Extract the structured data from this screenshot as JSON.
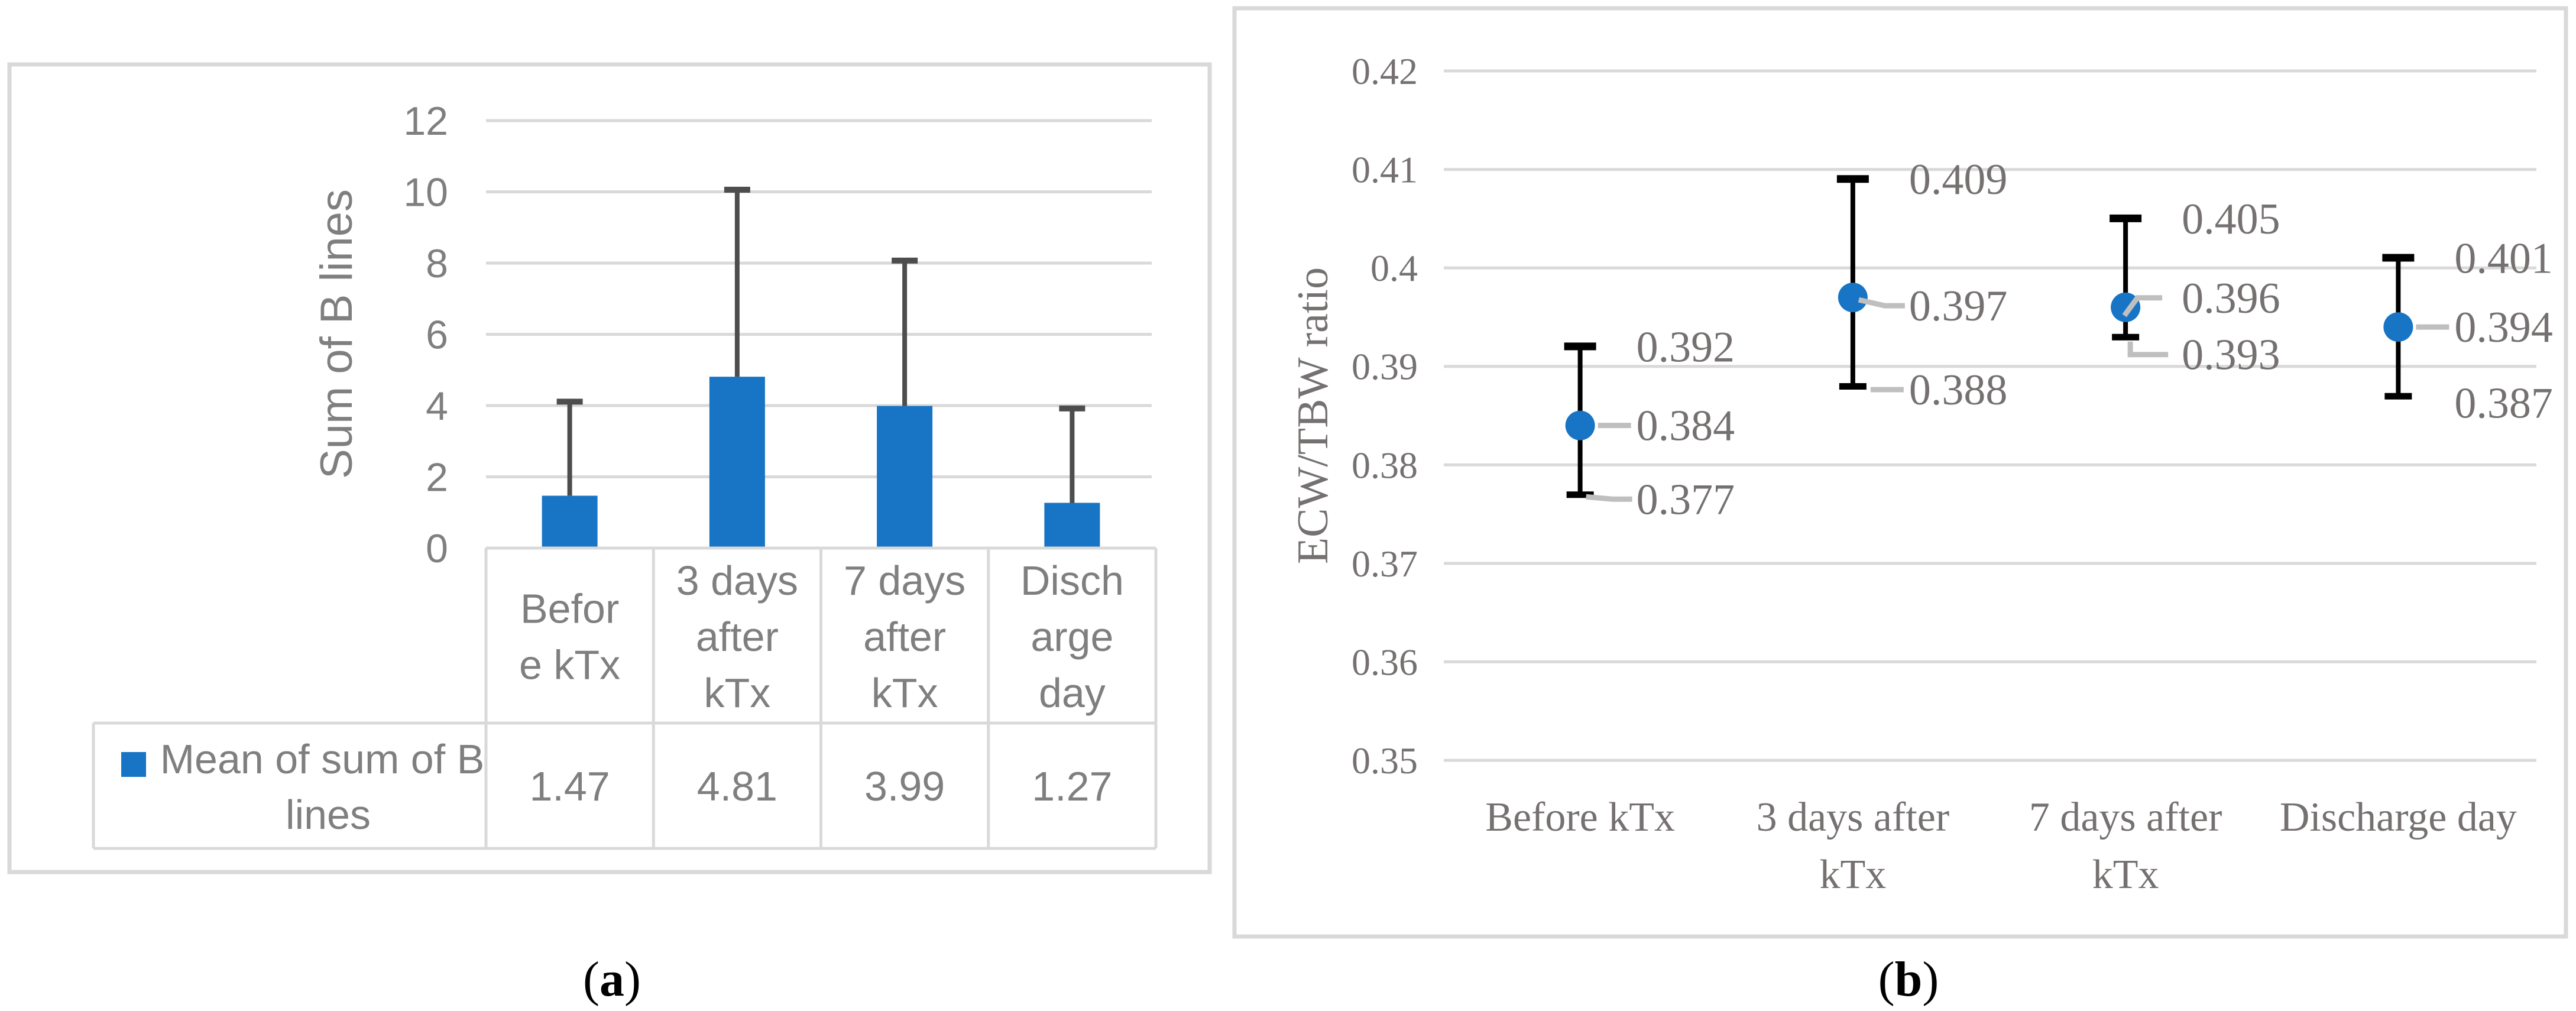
{
  "figure": {
    "caption_a": {
      "open": "(",
      "letter": "a",
      "close": ")"
    },
    "caption_b": {
      "open": "(",
      "letter": "b",
      "close": ")"
    }
  },
  "colors": {
    "bar_blue": "#1874C4",
    "grid_gray": "#D9D9D9",
    "panel_border": "#D9D9D9",
    "table_border": "#D9D9D9",
    "text_gray_a": "#7F7F7F",
    "text_gray_b": "#767171",
    "whisker_a": "#4D4D4D",
    "whisker_b": "#000000",
    "leader_gray": "#BFBFBF",
    "caption_black": "#000000"
  },
  "chart_data": [
    {
      "id": "a",
      "type": "bar",
      "title": "",
      "xlabel": "",
      "ylabel": "Sum of B lines",
      "categories": [
        "Before kTx",
        "3 days after kTx",
        "7 days after kTx",
        "Discharge day"
      ],
      "categories_display": [
        "Befor\ne kTx",
        "3 days\nafter\nkTx",
        "7 days\nafter\nkTx",
        "Disch\narge\nday"
      ],
      "series": [
        {
          "name": "Mean of sum of B lines",
          "name_display": [
            "Mean of sum of B",
            "lines"
          ],
          "values": [
            1.47,
            4.81,
            3.99,
            1.27
          ],
          "error_plus_est": [
            2.64,
            5.25,
            4.08,
            2.65
          ]
        }
      ],
      "value_labels": [
        "1.47",
        "4.81",
        "3.99",
        "1.27"
      ],
      "ylim": [
        0,
        12
      ],
      "yticks": [
        0,
        2,
        4,
        6,
        8,
        10,
        12
      ],
      "grid": true,
      "legend_position": "data-table-left-key"
    },
    {
      "id": "b",
      "type": "scatter",
      "title": "",
      "xlabel": "",
      "ylabel": "ECW/TBW ratio",
      "categories": [
        "Before kTx",
        "3 days after kTx",
        "7 days after kTx",
        "Discharge day"
      ],
      "categories_display": [
        "Before kTx",
        "3 days after\nkTx",
        "7 days after\nkTx",
        "Discharge day"
      ],
      "ylim": [
        0.35,
        0.42
      ],
      "yticks": [
        {
          "v": 0.42,
          "label": "0.42"
        },
        {
          "v": 0.41,
          "label": "0.41"
        },
        {
          "v": 0.4,
          "label": "0.4"
        },
        {
          "v": 0.39,
          "label": "0.39"
        },
        {
          "v": 0.38,
          "label": "0.38"
        },
        {
          "v": 0.37,
          "label": "0.37"
        },
        {
          "v": 0.36,
          "label": "0.36"
        },
        {
          "v": 0.35,
          "label": "0.35"
        }
      ],
      "grid": true,
      "points": [
        {
          "category": "Before kTx",
          "mean": 0.384,
          "upper": 0.392,
          "lower": 0.377,
          "labels": {
            "upper": {
              "text": "0.392",
              "leader": "none",
              "dy": 0
            },
            "mean": {
              "text": "0.384",
              "leader": "straight",
              "dy": 0
            },
            "lower": {
              "text": "0.377",
              "leader": "slant-down",
              "dy": 8
            }
          }
        },
        {
          "category": "3 days after kTx",
          "mean": 0.397,
          "upper": 0.409,
          "lower": 0.388,
          "labels": {
            "upper": {
              "text": "0.409",
              "leader": "none",
              "dy": 0
            },
            "mean": {
              "text": "0.397",
              "leader": "slant-down",
              "dy": 14
            },
            "lower": {
              "text": "0.388",
              "leader": "straight",
              "dy": 6
            }
          }
        },
        {
          "category": "7 days after kTx",
          "mean": 0.396,
          "upper": 0.405,
          "lower": 0.393,
          "labels": {
            "upper": {
              "text": "0.405",
              "leader": "none",
              "dy": 0
            },
            "mean": {
              "text": "0.396",
              "leader": "bend-up",
              "dy": -16
            },
            "lower": {
              "text": "0.393",
              "leader": "elbow-down",
              "dy": 30
            }
          }
        },
        {
          "category": "Discharge day",
          "mean": 0.394,
          "upper": 0.401,
          "lower": 0.387,
          "labels": {
            "upper": {
              "text": "0.401",
              "leader": "none",
              "dy": 0
            },
            "mean": {
              "text": "0.394",
              "leader": "straight",
              "dy": 0
            },
            "lower": {
              "text": "0.387",
              "leader": "none",
              "dy": 12
            }
          }
        }
      ]
    }
  ]
}
